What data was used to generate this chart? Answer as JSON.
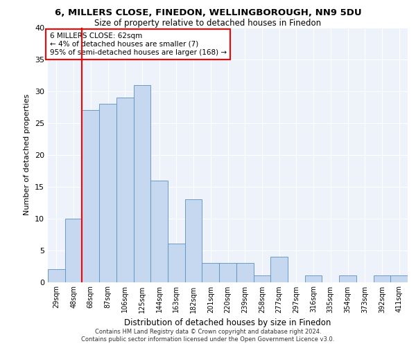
{
  "title1": "6, MILLERS CLOSE, FINEDON, WELLINGBOROUGH, NN9 5DU",
  "title2": "Size of property relative to detached houses in Finedon",
  "xlabel": "Distribution of detached houses by size in Finedon",
  "ylabel": "Number of detached properties",
  "categories": [
    "29sqm",
    "48sqm",
    "68sqm",
    "87sqm",
    "106sqm",
    "125sqm",
    "144sqm",
    "163sqm",
    "182sqm",
    "201sqm",
    "220sqm",
    "239sqm",
    "258sqm",
    "277sqm",
    "297sqm",
    "316sqm",
    "335sqm",
    "354sqm",
    "373sqm",
    "392sqm",
    "411sqm"
  ],
  "values": [
    2,
    10,
    27,
    28,
    29,
    31,
    16,
    6,
    13,
    3,
    3,
    3,
    1,
    4,
    0,
    1,
    0,
    1,
    0,
    1,
    1
  ],
  "bar_color": "#c5d8f0",
  "bar_edge_color": "#5a8fc0",
  "vline_color": "red",
  "vline_x": 1.5,
  "annotation_text1": "6 MILLERS CLOSE: 62sqm",
  "annotation_text2": "← 4% of detached houses are smaller (7)",
  "annotation_text3": "95% of semi-detached houses are larger (168) →",
  "annotation_box_color": "white",
  "annotation_box_edge": "red",
  "ylim": [
    0,
    40
  ],
  "yticks": [
    0,
    5,
    10,
    15,
    20,
    25,
    30,
    35,
    40
  ],
  "footer1": "Contains HM Land Registry data © Crown copyright and database right 2024.",
  "footer2": "Contains public sector information licensed under the Open Government Licence v3.0.",
  "plot_bg_color": "#eef2fb"
}
